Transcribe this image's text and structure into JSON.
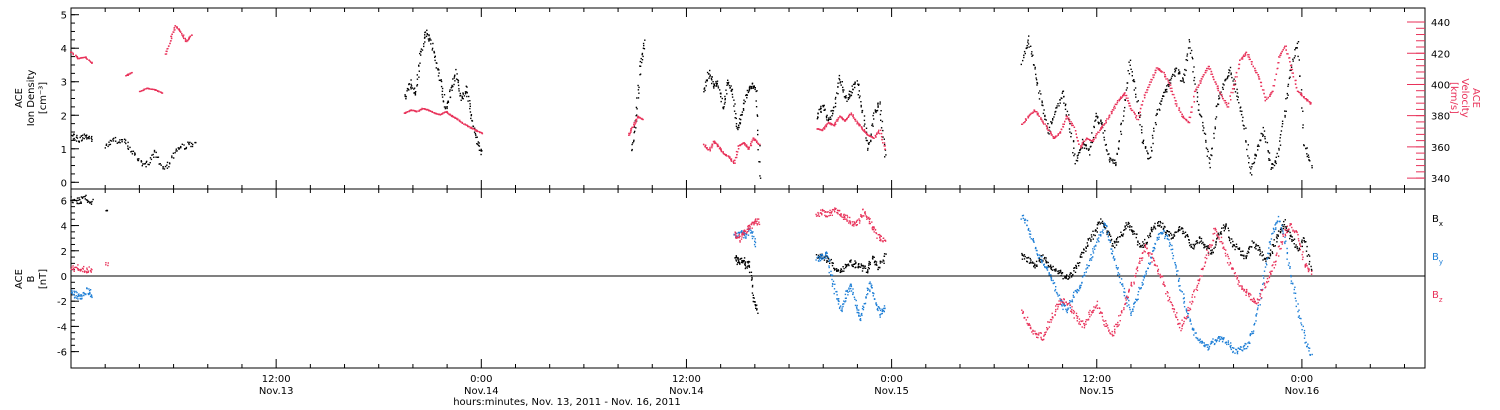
{
  "colors": {
    "black": "#000000",
    "pink": "#e8325a",
    "blue": "#1f7fd6"
  },
  "xaxis": {
    "ticks": [
      {
        "t": 12,
        "line1": "12:00",
        "line2": "Nov.13"
      },
      {
        "t": 24,
        "line1": "0:00",
        "line2": "Nov.14"
      },
      {
        "t": 36,
        "line1": "12:00",
        "line2": "Nov.14"
      },
      {
        "t": 48,
        "line1": "0:00",
        "line2": "Nov.15"
      },
      {
        "t": 60,
        "line1": "12:00",
        "line2": "Nov.15"
      },
      {
        "t": 72,
        "line1": "0:00",
        "line2": "Nov.16"
      }
    ],
    "range_hours": [
      0,
      79.2
    ],
    "title": "hours:minutes, Nov. 13, 2011 - Nov. 16, 2011"
  },
  "chart_data": [
    {
      "type": "scatter",
      "title": "",
      "ylabel": [
        "ACE",
        "Ion Density",
        "[cm⁻³]"
      ],
      "ylabel_right": [
        "ACE",
        "Velocity",
        "[km/s]"
      ],
      "ylim": [
        -0.2,
        5.2
      ],
      "yticks": [
        0,
        1,
        2,
        3,
        4,
        5
      ],
      "ylim_right": [
        333,
        449
      ],
      "yticks_right": [
        340,
        360,
        380,
        400,
        420,
        440
      ],
      "series": [
        {
          "color": "black",
          "axis": "left",
          "segments": [
            {
              "t0": 0.0,
              "t1": 1.2,
              "values": [
                1.4,
                1.3,
                1.4,
                1.3
              ]
            },
            {
              "t0": 2.0,
              "t1": 7.2,
              "values": [
                1.1,
                1.3,
                1.2,
                0.8,
                0.5,
                0.9,
                0.4,
                0.9,
                1.1,
                1.2
              ]
            },
            {
              "t0": 19.5,
              "t1": 24.0,
              "values": [
                2.5,
                3.0,
                2.6,
                3.8,
                4.5,
                4.3,
                3.6,
                3.0,
                2.2,
                2.8,
                3.3,
                2.5,
                2.8,
                2.0,
                1.3,
                0.9
              ]
            },
            {
              "t0": 32.8,
              "t1": 33.5,
              "values": [
                1.0,
                2.0,
                3.4,
                4.2
              ]
            },
            {
              "t0": 37.0,
              "t1": 40.3,
              "values": [
                2.8,
                3.3,
                2.9,
                3.0,
                2.2,
                3.0,
                2.7,
                1.6,
                2.0,
                2.6,
                2.9,
                2.8,
                0.2
              ]
            },
            {
              "t0": 43.6,
              "t1": 47.6,
              "values": [
                2.0,
                2.3,
                1.9,
                2.2,
                3.2,
                2.5,
                2.7,
                3.0,
                2.1,
                1.0,
                2.0,
                2.4,
                0.8
              ]
            },
            {
              "t0": 55.6,
              "t1": 72.5,
              "values": [
                3.6,
                4.3,
                3.2,
                2.3,
                1.5,
                2.2,
                2.7,
                1.8,
                0.6,
                1.2,
                0.9,
                2.0,
                1.7,
                0.7,
                0.6,
                1.9,
                3.6,
                2.6,
                1.3,
                0.7,
                2.0,
                2.6,
                3.0,
                3.4,
                3.0,
                4.2,
                2.6,
                1.6,
                0.5,
                2.3,
                2.9,
                3.4,
                2.6,
                1.8,
                0.3,
                1.0,
                1.6,
                0.4,
                0.8,
                2.0,
                3.4,
                4.2,
                1.2,
                0.5
              ]
            }
          ]
        },
        {
          "color": "pink",
          "axis": "right",
          "segments": [
            {
              "t0": 0.0,
              "t1": 1.2,
              "values": [
                421,
                417,
                418,
                414
              ]
            },
            {
              "t0": 3.2,
              "t1": 3.5,
              "values": [
                406,
                408
              ]
            },
            {
              "t0": 4.0,
              "t1": 5.3,
              "values": [
                396,
                398,
                397,
                395
              ]
            },
            {
              "t0": 5.5,
              "t1": 7.0,
              "values": [
                420,
                430,
                438,
                434,
                428,
                432
              ]
            },
            {
              "t0": 19.5,
              "t1": 24.0,
              "values": [
                382,
                384,
                383,
                385,
                384,
                382,
                381,
                383,
                380,
                378,
                375,
                373,
                371,
                369
              ]
            },
            {
              "t0": 32.6,
              "t1": 33.4,
              "values": [
                368,
                374,
                380,
                378
              ]
            },
            {
              "t0": 37.0,
              "t1": 40.2,
              "values": [
                362,
                358,
                364,
                360,
                356,
                354,
                350,
                361,
                363,
                359,
                366,
                362
              ]
            },
            {
              "t0": 43.6,
              "t1": 47.6,
              "values": [
                372,
                371,
                376,
                374,
                380,
                377,
                382,
                376,
                372,
                368,
                366,
                371,
                359
              ]
            },
            {
              "t0": 55.6,
              "t1": 72.5,
              "values": [
                375,
                380,
                384,
                378,
                372,
                366,
                370,
                380,
                373,
                360,
                366,
                364,
                371,
                376,
                383,
                390,
                395,
                385,
                378,
                392,
                402,
                411,
                408,
                400,
                388,
                380,
                376,
                396,
                404,
                412,
                402,
                394,
                386,
                400,
                416,
                421,
                412,
                404,
                390,
                396,
                418,
                425,
                410,
                396,
                392,
                388
              ]
            }
          ]
        }
      ]
    },
    {
      "type": "scatter",
      "title": "",
      "ylabel": [
        "ACE",
        "B",
        "[nT]"
      ],
      "ylim": [
        -7.3,
        6.9
      ],
      "yticks": [
        -6,
        -4,
        -2,
        0,
        2,
        4,
        6
      ],
      "zero_line": true,
      "legend": "right",
      "series": [
        {
          "name": "B",
          "sub": "x",
          "color": "black",
          "segments": [
            {
              "t0": 0.0,
              "t1": 1.2,
              "values": [
                6.1,
                6.0,
                6.2,
                6.0
              ]
            },
            {
              "t0": 2.0,
              "t1": 2.1,
              "values": [
                5.3
              ]
            },
            {
              "t0": 38.8,
              "t1": 40.1,
              "values": [
                1.5,
                1.1,
                1.4,
                0.9,
                1.0,
                -1.8,
                -2.7
              ]
            },
            {
              "t0": 43.6,
              "t1": 47.6,
              "values": [
                1.5,
                1.7,
                1.2,
                0.6,
                0.5,
                1.1,
                1.0,
                0.8,
                0.5,
                1.4,
                0.7,
                1.6
              ]
            },
            {
              "t0": 55.6,
              "t1": 72.5,
              "values": [
                1.7,
                1.3,
                0.8,
                1.6,
                0.9,
                0.5,
                0.2,
                -0.2,
                0.6,
                1.6,
                2.6,
                3.5,
                4.4,
                3.6,
                2.5,
                3.1,
                4.2,
                3.6,
                2.3,
                2.9,
                3.9,
                4.2,
                3.6,
                3.0,
                3.8,
                3.3,
                2.4,
                3.0,
                2.3,
                1.9,
                3.4,
                4.1,
                2.6,
                2.1,
                1.6,
                2.6,
                2.3,
                1.2,
                2.1,
                3.3,
                4.3,
                3.0,
                2.2,
                3.1,
                0.6
              ]
            }
          ]
        },
        {
          "name": "B",
          "sub": "y",
          "color": "blue",
          "segments": [
            {
              "t0": 0.0,
              "t1": 1.2,
              "values": [
                -1.3,
                -1.5,
                -1.6,
                -1.1,
                -1.4
              ]
            },
            {
              "t0": 38.8,
              "t1": 40.0,
              "values": [
                3.1,
                3.6,
                3.2,
                3.8,
                2.6
              ]
            },
            {
              "t0": 43.6,
              "t1": 47.6,
              "values": [
                1.4,
                1.6,
                1.7,
                -0.1,
                -1.6,
                -2.6,
                -1.3,
                -0.7,
                -2.3,
                -3.4,
                -1.6,
                -0.6,
                -2.0,
                -3.0,
                -2.4
              ]
            },
            {
              "t0": 55.6,
              "t1": 72.5,
              "values": [
                4.8,
                3.9,
                2.3,
                1.4,
                0.6,
                -0.7,
                -2.1,
                -2.7,
                -1.4,
                -0.9,
                0.6,
                2.0,
                3.1,
                4.2,
                2.0,
                0.3,
                -1.4,
                -2.9,
                -1.6,
                -0.1,
                1.3,
                2.9,
                3.6,
                2.6,
                0.6,
                -1.6,
                -3.3,
                -4.6,
                -5.3,
                -5.6,
                -5.1,
                -4.9,
                -5.2,
                -5.9,
                -5.8,
                -5.4,
                -4.3,
                -2.0,
                1.1,
                3.6,
                4.6,
                2.6,
                -0.3,
                -2.6,
                -4.9,
                -6.3
              ]
            }
          ]
        },
        {
          "name": "B",
          "sub": "z",
          "color": "pink",
          "segments": [
            {
              "t0": 0.0,
              "t1": 1.2,
              "values": [
                0.6,
                0.7,
                0.5,
                0.6
              ]
            },
            {
              "t0": 2.0,
              "t1": 2.1,
              "values": [
                1.1
              ]
            },
            {
              "t0": 38.8,
              "t1": 40.2,
              "values": [
                3.3,
                3.0,
                3.6,
                3.9,
                4.3,
                4.4
              ]
            },
            {
              "t0": 43.6,
              "t1": 47.6,
              "values": [
                5.0,
                5.1,
                4.9,
                5.2,
                5.0,
                4.7,
                4.4,
                4.1,
                5.1,
                4.6,
                3.7,
                3.1,
                2.8
              ]
            },
            {
              "t0": 55.6,
              "t1": 72.5,
              "values": [
                -2.8,
                -3.8,
                -4.6,
                -4.8,
                -3.6,
                -2.5,
                -1.8,
                -2.5,
                -3.3,
                -3.9,
                -2.9,
                -2.2,
                -3.6,
                -4.6,
                -3.6,
                -1.9,
                -0.6,
                1.0,
                2.3,
                1.4,
                0.3,
                -1.2,
                -2.6,
                -4.1,
                -2.9,
                -1.4,
                0.2,
                1.9,
                3.6,
                2.8,
                1.3,
                0.2,
                -0.9,
                -1.5,
                -2.3,
                -1.0,
                0.2,
                1.6,
                3.2,
                4.1,
                3.4,
                1.0,
                0.3
              ]
            }
          ]
        }
      ]
    }
  ]
}
